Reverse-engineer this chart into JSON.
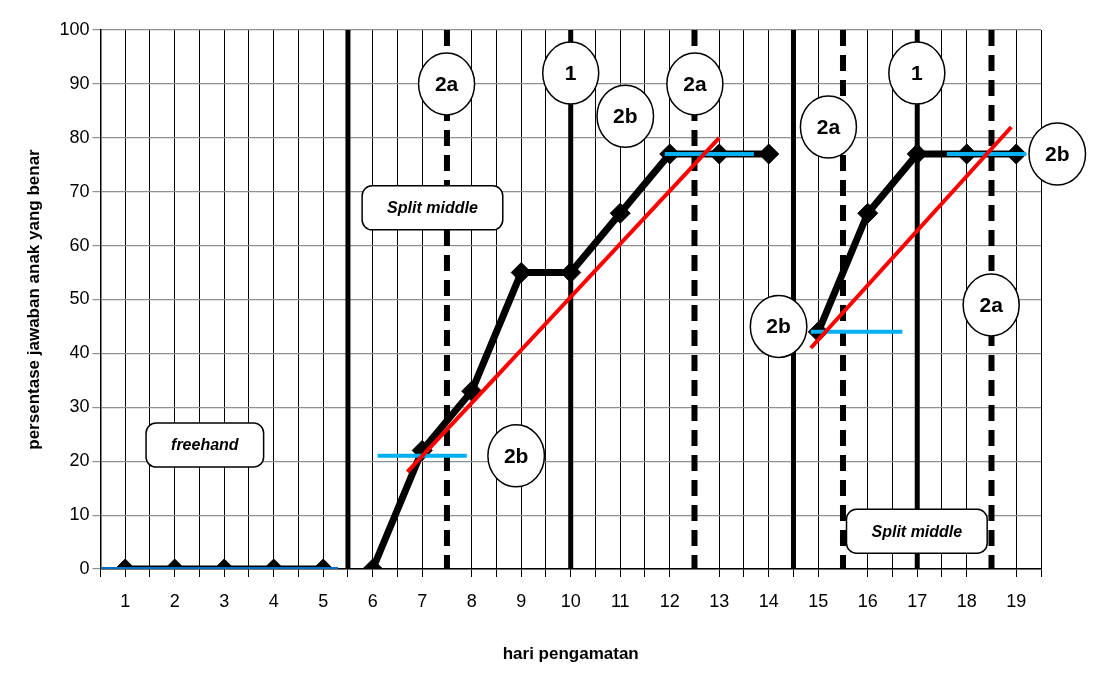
{
  "chart_data": {
    "type": "line",
    "xlabel": "hari pengamatan",
    "ylabel": "persentase jawaban anak yang benar",
    "xlim": [
      0.5,
      19.5
    ],
    "xticks": [
      {
        "value": 0.5,
        "label": null
      },
      1,
      {
        "value": 1.5,
        "label": null
      },
      2,
      {
        "value": 2.5,
        "label": null
      },
      3,
      {
        "value": 3.5,
        "label": null
      },
      4,
      {
        "value": 4.5,
        "label": null
      },
      5,
      {
        "value": 5.5,
        "label": null
      },
      6,
      {
        "value": 6.5,
        "label": null
      },
      7,
      {
        "value": 7.5,
        "label": null
      },
      8,
      {
        "value": 8.5,
        "label": null
      },
      9,
      {
        "value": 9.5,
        "label": null
      },
      10,
      {
        "value": 10.5,
        "label": null
      },
      11,
      {
        "value": 11.5,
        "label": null
      },
      12,
      {
        "value": 12.5,
        "label": null
      },
      13,
      {
        "value": 13.5,
        "label": null
      },
      14,
      {
        "value": 14.5,
        "label": null
      },
      15,
      {
        "value": 15.5,
        "label": null
      },
      16,
      {
        "value": 16.5,
        "label": null
      },
      17,
      {
        "value": 17.5,
        "label": null
      },
      18,
      {
        "value": 18.5,
        "label": null
      },
      19,
      {
        "value": 19.5,
        "label": null
      }
    ],
    "ylim": [
      0,
      100
    ],
    "yticks": [
      0,
      10,
      20,
      30,
      40,
      50,
      60,
      70,
      80,
      90,
      100
    ],
    "grid": true,
    "legend": false,
    "series": [
      {
        "color": "#000000",
        "marker": "diamond",
        "x": [
          1,
          2,
          3,
          4,
          5,
          5.5,
          6,
          7,
          8,
          9,
          10,
          11,
          12,
          13,
          14,
          14.5,
          15,
          16,
          17,
          18,
          19
        ],
        "values": [
          0,
          0,
          0,
          0,
          0,
          null,
          0,
          22,
          33,
          55,
          55,
          66,
          77,
          77,
          77,
          null,
          44,
          66,
          77,
          77,
          77
        ]
      },
      {
        "color": "#0070c0",
        "marker": "none",
        "x": [
          0.5,
          5.3
        ],
        "values": [
          0,
          0
        ]
      },
      {
        "color": "#00b0f0",
        "marker": "none",
        "x": [
          6.1,
          7.9
        ],
        "values": [
          21,
          21
        ]
      },
      {
        "color": "#00b0f0",
        "marker": "none",
        "x": [
          11.9,
          13.7
        ],
        "values": [
          77,
          77
        ]
      },
      {
        "color": "#00b0f0",
        "marker": "none",
        "x": [
          14.85,
          16.7
        ],
        "values": [
          44,
          44
        ]
      },
      {
        "color": "#00b0f0",
        "marker": "none",
        "x": [
          17.6,
          19.2
        ],
        "values": [
          77,
          77
        ]
      },
      {
        "color": "#ff0000",
        "marker": "none",
        "x": [
          6.7,
          13
        ],
        "values": [
          18,
          80
        ]
      },
      {
        "color": "#ff0000",
        "marker": "none",
        "x": [
          14.85,
          18.9
        ],
        "values": [
          41,
          82
        ]
      }
    ],
    "ref_lines": [
      {
        "axis": "x",
        "value": 5.5,
        "line_style": "solid"
      },
      {
        "axis": "x",
        "value": 14.5,
        "line_style": "solid"
      },
      {
        "axis": "x",
        "value": 10,
        "line_style": "solid"
      },
      {
        "axis": "x",
        "value": 17,
        "line_style": "solid"
      },
      {
        "axis": "x",
        "value": 7.5,
        "line_style": "dashed"
      },
      {
        "axis": "x",
        "value": 12.5,
        "line_style": "dashed"
      },
      {
        "axis": "x",
        "value": 15.5,
        "line_style": "dashed"
      },
      {
        "axis": "x",
        "value": 18.5,
        "line_style": "dashed"
      }
    ],
    "annotations": [
      "2a",
      "1",
      "2a",
      "2b",
      "2b",
      "2b",
      "2a",
      "1",
      "2b",
      "2a",
      "freehand",
      "Split middle",
      "Split middle"
    ]
  }
}
